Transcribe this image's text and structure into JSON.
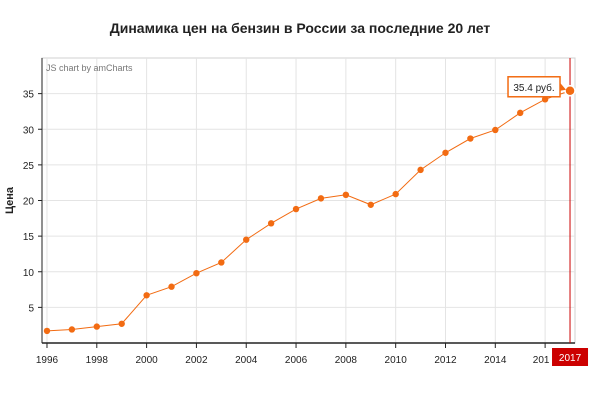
{
  "chart_data": {
    "type": "line",
    "title": "Динамика цен на бензин в России за последние 20 лет",
    "ylabel": "Цена",
    "xlabel": "",
    "credit": "JS chart by amCharts",
    "x": [
      1996,
      1997,
      1998,
      1999,
      2000,
      2001,
      2002,
      2003,
      2004,
      2005,
      2006,
      2007,
      2008,
      2009,
      2010,
      2011,
      2012,
      2013,
      2014,
      2015,
      2016,
      2017
    ],
    "series": [
      {
        "values": [
          1.7,
          1.9,
          2.3,
          2.7,
          6.7,
          7.9,
          9.8,
          11.3,
          14.5,
          16.8,
          18.8,
          20.3,
          20.8,
          19.4,
          20.9,
          24.3,
          26.7,
          28.7,
          29.9,
          32.3,
          34.2,
          35.4
        ],
        "color": "#f26b12"
      }
    ],
    "xticks": [
      "1996",
      "1998",
      "2000",
      "2002",
      "2004",
      "2006",
      "2008",
      "2010",
      "2012",
      "2014",
      "201",
      "2017"
    ],
    "yticks": [
      "5",
      "10",
      "15",
      "20",
      "25",
      "30",
      "35"
    ],
    "ylim": [
      0,
      40
    ],
    "xlim": [
      1995.8,
      2017.2
    ],
    "grid": true,
    "balloon": {
      "text": "35.4 руб."
    },
    "cursor": {
      "label": "2017"
    },
    "colors": {
      "line": "#f26b12",
      "cursor": "#cc0000",
      "grid": "#e4e4e4"
    }
  }
}
